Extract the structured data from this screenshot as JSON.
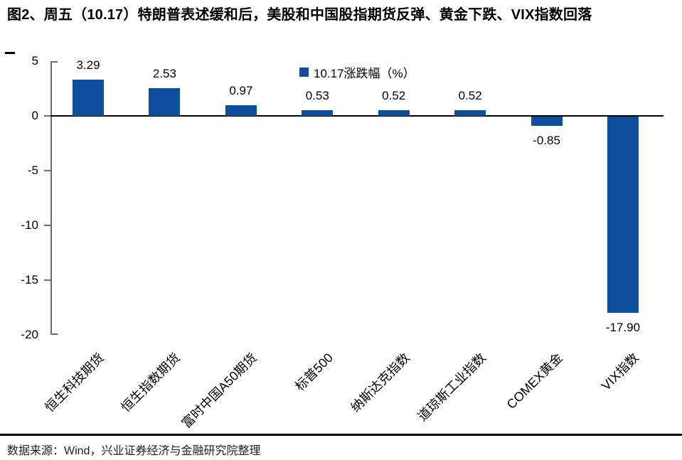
{
  "title": "图2、周五（10.17）特朗普表述缓和后，美股和中国股指期货反弹、黄金下跌、VIX指数回落",
  "source": "数据来源：Wind，兴业证券经济与金融研究院整理",
  "chart_data": {
    "type": "bar",
    "title": "图2、周五（10.17）特朗普表述缓和后，美股和中国股指期货反弹、黄金下跌、VIX指数回落",
    "legend": "10.17涨跌幅（%）",
    "legend_position": "top-center",
    "categories": [
      "恒生科技期货",
      "恒生指数期货",
      "富时中国A50期货",
      "标普500",
      "纳斯达克指数",
      "道琼斯工业指数",
      "COMEX黄金",
      "VIX指数"
    ],
    "values": [
      3.29,
      2.53,
      0.97,
      0.53,
      0.52,
      0.52,
      -0.85,
      -17.9
    ],
    "value_labels": [
      "3.29",
      "2.53",
      "0.97",
      "0.53",
      "0.52",
      "0.52",
      "-0.85",
      "-17.90"
    ],
    "xlabel": "",
    "ylabel": "",
    "ylim": [
      -20,
      5
    ],
    "yticks": [
      5,
      0,
      -5,
      -10,
      -15,
      -20
    ],
    "grid": false,
    "bar_color": "#0D4E9E",
    "axis_color": "#6d6d6d",
    "zero_line_color": "#000000"
  }
}
